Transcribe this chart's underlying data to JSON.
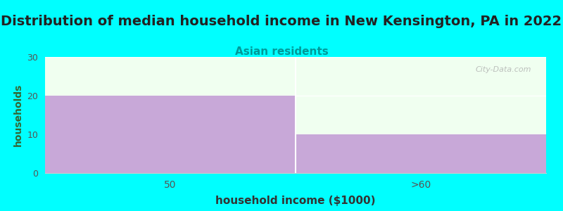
{
  "title": "Distribution of median household income in New Kensington, PA in 2022",
  "subtitle": "Asian residents",
  "xlabel": "household income ($1000)",
  "ylabel": "households",
  "categories": [
    "50",
    ">60"
  ],
  "values": [
    20,
    10
  ],
  "bar_color": "#C8A8D8",
  "background_color": "#00FFFF",
  "plot_bg_color": "#F0FFF0",
  "ylim": [
    0,
    30
  ],
  "yticks": [
    0,
    10,
    20,
    30
  ],
  "xlim": [
    0,
    2
  ],
  "title_fontsize": 14,
  "subtitle_fontsize": 11,
  "subtitle_color": "#009999",
  "xlabel_fontsize": 11,
  "ylabel_fontsize": 10,
  "watermark": "City-Data.com",
  "tick_label_color": "#555555",
  "ylabel_color": "#336633",
  "xlabel_color": "#333333"
}
